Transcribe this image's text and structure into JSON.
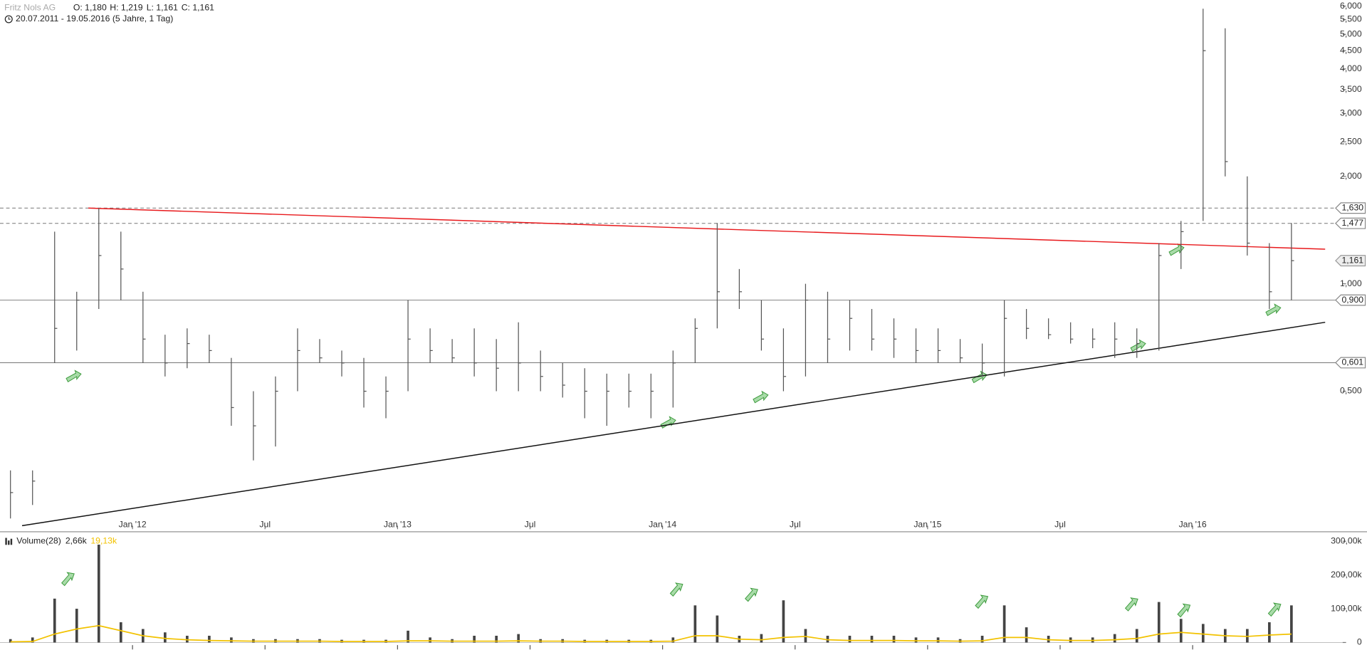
{
  "header": {
    "name": "Fritz Nols AG",
    "open": "O: 1,180",
    "high": "H: 1,219",
    "low": "L: 1,161",
    "close": "C: 1,161",
    "range": "20.07.2011 - 19.05.2016 (5 Jahre, 1 Tag)"
  },
  "chart_data": [
    {
      "type": "stock",
      "log_scale": true,
      "color": "#555555",
      "x": [
        "2011-07",
        "2011-08",
        "2011-09",
        "2011-10",
        "2011-11",
        "2011-12",
        "2012-01",
        "2012-02",
        "2012-03",
        "2012-04",
        "2012-05",
        "2012-06",
        "2012-07",
        "2012-08",
        "2012-09",
        "2012-10",
        "2012-11",
        "2012-12",
        "2013-01",
        "2013-02",
        "2013-03",
        "2013-04",
        "2013-05",
        "2013-06",
        "2013-07",
        "2013-08",
        "2013-09",
        "2013-10",
        "2013-11",
        "2013-12",
        "2014-01",
        "2014-02",
        "2014-03",
        "2014-04",
        "2014-05",
        "2014-06",
        "2014-07",
        "2014-08",
        "2014-09",
        "2014-10",
        "2014-11",
        "2014-12",
        "2015-01",
        "2015-02",
        "2015-03",
        "2015-04",
        "2015-05",
        "2015-06",
        "2015-07",
        "2015-08",
        "2015-09",
        "2015-10",
        "2015-11",
        "2015-12",
        "2016-01",
        "2016-02",
        "2016-03",
        "2016-04",
        "2016-05"
      ],
      "high": [
        0.3,
        0.3,
        1.4,
        0.95,
        1.63,
        1.4,
        0.95,
        0.72,
        0.75,
        0.72,
        0.62,
        0.5,
        0.55,
        0.75,
        0.7,
        0.65,
        0.62,
        0.55,
        0.9,
        0.75,
        0.7,
        0.75,
        0.7,
        0.78,
        0.65,
        0.6,
        0.58,
        0.56,
        0.56,
        0.56,
        0.65,
        0.8,
        1.48,
        1.1,
        0.9,
        0.75,
        1.0,
        0.95,
        0.9,
        0.85,
        0.8,
        0.75,
        0.75,
        0.7,
        0.68,
        0.9,
        0.85,
        0.8,
        0.78,
        0.75,
        0.78,
        0.75,
        1.3,
        1.5,
        5.9,
        5.2,
        2.0,
        1.3,
        1.48
      ],
      "low": [
        0.22,
        0.24,
        0.6,
        0.65,
        0.85,
        0.9,
        0.6,
        0.55,
        0.58,
        0.6,
        0.4,
        0.32,
        0.35,
        0.5,
        0.6,
        0.55,
        0.45,
        0.42,
        0.5,
        0.6,
        0.6,
        0.55,
        0.5,
        0.5,
        0.5,
        0.48,
        0.42,
        0.4,
        0.45,
        0.42,
        0.45,
        0.6,
        0.75,
        0.85,
        0.65,
        0.5,
        0.55,
        0.6,
        0.65,
        0.65,
        0.62,
        0.6,
        0.6,
        0.6,
        0.55,
        0.55,
        0.7,
        0.7,
        0.68,
        0.66,
        0.62,
        0.62,
        0.65,
        1.1,
        1.5,
        2.0,
        1.2,
        0.85,
        0.9
      ],
      "close": [
        0.26,
        0.28,
        0.75,
        0.9,
        1.2,
        1.1,
        0.7,
        0.6,
        0.68,
        0.65,
        0.45,
        0.4,
        0.5,
        0.65,
        0.62,
        0.6,
        0.5,
        0.5,
        0.7,
        0.65,
        0.62,
        0.6,
        0.58,
        0.6,
        0.55,
        0.52,
        0.5,
        0.5,
        0.5,
        0.5,
        0.6,
        0.75,
        0.95,
        0.95,
        0.7,
        0.55,
        0.9,
        0.7,
        0.8,
        0.7,
        0.7,
        0.65,
        0.65,
        0.62,
        0.6,
        0.8,
        0.75,
        0.72,
        0.7,
        0.7,
        0.7,
        0.68,
        1.2,
        1.4,
        4.5,
        2.2,
        1.3,
        0.95,
        1.161
      ],
      "xlim": [
        "2011-07",
        "2016-07"
      ],
      "xticks": [
        {
          "value": "2012-01",
          "label": "Jan '12"
        },
        {
          "value": "2012-07",
          "label": "Jul"
        },
        {
          "value": "2013-01",
          "label": "Jan '13"
        },
        {
          "value": "2013-07",
          "label": "Jul"
        },
        {
          "value": "2014-01",
          "label": "Jan '14"
        },
        {
          "value": "2014-07",
          "label": "Jul"
        },
        {
          "value": "2015-01",
          "label": "Jan '15"
        },
        {
          "value": "2015-07",
          "label": "Jul"
        },
        {
          "value": "2016-01",
          "label": "Jan '16"
        }
      ],
      "ylim": [
        0.21,
        6.24
      ],
      "yticks": [
        {
          "value": 0.5,
          "label": "0,500"
        },
        {
          "value": 1,
          "label": "1,000"
        },
        {
          "value": 2,
          "label": "2,000"
        },
        {
          "value": 2.5,
          "label": "2,500"
        },
        {
          "value": 3,
          "label": "3,000"
        },
        {
          "value": 3.5,
          "label": "3,500"
        },
        {
          "value": 4,
          "label": "4,000"
        },
        {
          "value": 4.5,
          "label": "4,500"
        },
        {
          "value": 5,
          "label": "5,000"
        },
        {
          "value": 5.5,
          "label": "5,500"
        },
        {
          "value": 6,
          "label": "6,000"
        }
      ],
      "levels": [
        {
          "value": 1.63,
          "label": "1,630",
          "style": "dashed"
        },
        {
          "value": 1.477,
          "label": "1,477",
          "style": "dashed"
        },
        {
          "value": 0.9,
          "label": "0,900",
          "style": "solid"
        },
        {
          "value": 0.601,
          "label": "0,601",
          "style": "solid"
        }
      ],
      "last_price": {
        "value": 1.161,
        "label": "1,161"
      },
      "trendlines": [
        {
          "color": "#e8191c",
          "x": [
            "2011-11",
            "2016-07"
          ],
          "y": [
            1.63,
            1.25
          ]
        },
        {
          "color": "#111111",
          "x": [
            "2011-08",
            "2016-07"
          ],
          "y": [
            0.21,
            0.78
          ]
        }
      ]
    },
    {
      "type": "bar",
      "title": "Volume(28)",
      "current_label": "2,66k",
      "ma_label": "19,13k",
      "color": "#444444",
      "x": [
        "2011-07",
        "2011-08",
        "2011-09",
        "2011-10",
        "2011-11",
        "2011-12",
        "2012-01",
        "2012-02",
        "2012-03",
        "2012-04",
        "2012-05",
        "2012-06",
        "2012-07",
        "2012-08",
        "2012-09",
        "2012-10",
        "2012-11",
        "2012-12",
        "2013-01",
        "2013-02",
        "2013-03",
        "2013-04",
        "2013-05",
        "2013-06",
        "2013-07",
        "2013-08",
        "2013-09",
        "2013-10",
        "2013-11",
        "2013-12",
        "2014-01",
        "2014-02",
        "2014-03",
        "2014-04",
        "2014-05",
        "2014-06",
        "2014-07",
        "2014-08",
        "2014-09",
        "2014-10",
        "2014-11",
        "2014-12",
        "2015-01",
        "2015-02",
        "2015-03",
        "2015-04",
        "2015-05",
        "2015-06",
        "2015-07",
        "2015-08",
        "2015-09",
        "2015-10",
        "2015-11",
        "2015-12",
        "2016-01",
        "2016-02",
        "2016-03",
        "2016-04",
        "2016-05"
      ],
      "values": [
        10000,
        15000,
        130000,
        100000,
        290000,
        60000,
        40000,
        30000,
        20000,
        20000,
        15000,
        10000,
        10000,
        10000,
        10000,
        8000,
        8000,
        8000,
        35000,
        15000,
        10000,
        20000,
        20000,
        25000,
        10000,
        10000,
        8000,
        8000,
        8000,
        8000,
        15000,
        110000,
        80000,
        20000,
        25000,
        125000,
        40000,
        20000,
        20000,
        20000,
        20000,
        15000,
        15000,
        10000,
        20000,
        110000,
        45000,
        20000,
        15000,
        15000,
        25000,
        40000,
        120000,
        70000,
        55000,
        40000,
        40000,
        60000,
        110000
      ],
      "ma": {
        "color": "#f2c200",
        "values": [
          2000,
          3000,
          25000,
          40000,
          50000,
          35000,
          20000,
          12000,
          8000,
          6000,
          5000,
          4000,
          4000,
          4000,
          4000,
          3000,
          3000,
          3000,
          5000,
          5000,
          4000,
          4000,
          4000,
          5000,
          4000,
          4000,
          3000,
          3000,
          3000,
          3000,
          4000,
          20000,
          20000,
          10000,
          8000,
          15000,
          18000,
          8000,
          6000,
          6000,
          6000,
          5000,
          5000,
          4000,
          5000,
          15000,
          15000,
          8000,
          6000,
          6000,
          8000,
          12000,
          25000,
          30000,
          25000,
          20000,
          18000,
          22000,
          25000
        ]
      },
      "xlim": [
        "2011-07",
        "2016-07"
      ],
      "xticks": [
        "2012-01",
        "2012-07",
        "2013-01",
        "2013-07",
        "2014-01",
        "2014-07",
        "2015-01",
        "2015-07",
        "2016-01"
      ],
      "ylim": [
        0,
        310000
      ],
      "yticks": [
        0,
        {
          "value": 100000,
          "label": "100,00k"
        },
        {
          "value": 200000,
          "label": "200,00k"
        },
        {
          "value": 300000,
          "label": "300,00k"
        }
      ]
    }
  ]
}
